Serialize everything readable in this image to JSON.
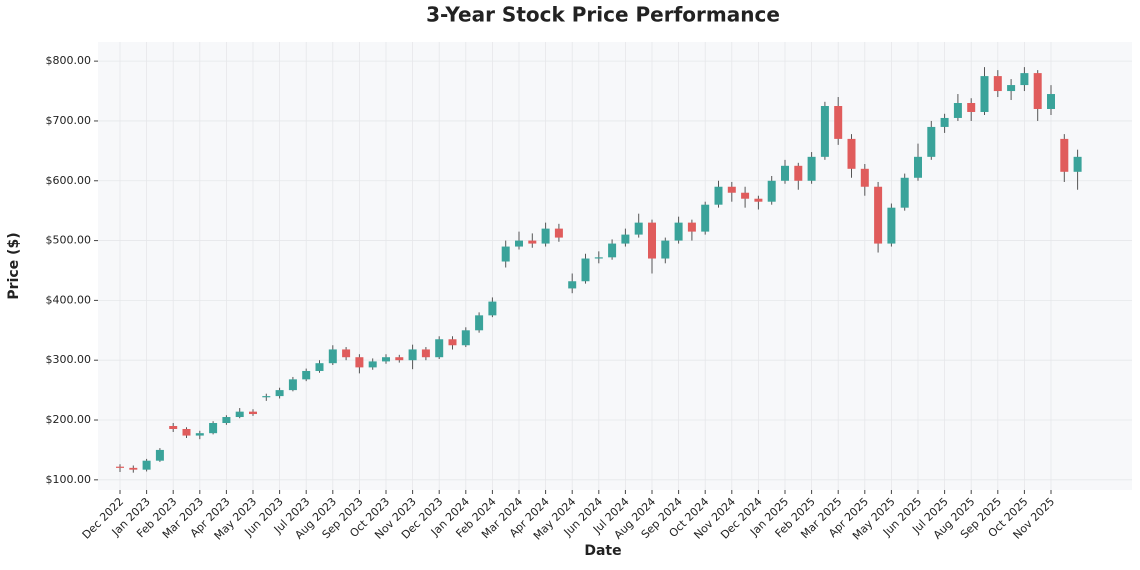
{
  "chart_data": {
    "type": "candlestick",
    "title": "3-Year Stock Price Performance",
    "x_label": "Date",
    "y_label": "Price ($)",
    "categories": [
      "Dec 2022",
      null,
      "Jan 2023",
      null,
      "Feb 2023",
      null,
      "Mar 2023",
      null,
      "Apr 2023",
      null,
      "May 2023",
      null,
      "Jun 2023",
      null,
      "Jul 2023",
      null,
      "Aug 2023",
      null,
      "Sep 2023",
      null,
      "Oct 2023",
      null,
      "Nov 2023",
      null,
      "Dec 2023",
      null,
      "Jan 2024",
      null,
      "Feb 2024",
      null,
      "Mar 2024",
      null,
      "Apr 2024",
      null,
      "May 2024",
      null,
      "Jun 2024",
      null,
      "Jul 2024",
      null,
      "Aug 2024",
      null,
      "Sep 2024",
      null,
      "Oct 2024",
      null,
      "Nov 2024",
      null,
      "Dec 2024",
      null,
      "Jan 2025",
      null,
      "Feb 2025",
      null,
      "Mar 2025",
      null,
      "Apr 2025",
      null,
      "May 2025",
      null,
      "Jun 2025",
      null,
      "Jul 2025",
      null,
      "Aug 2025",
      null,
      "Sep 2025",
      null,
      "Oct 2025",
      null,
      "Nov 2025",
      null,
      null
    ],
    "open": [
      122,
      120,
      117,
      132,
      190,
      185,
      174,
      178,
      195,
      205,
      214,
      238,
      240,
      250,
      268,
      282,
      295,
      318,
      305,
      288,
      298,
      305,
      300,
      318,
      305,
      335,
      325,
      350,
      375,
      465,
      490,
      500,
      495,
      520,
      420,
      432,
      470,
      472,
      495,
      510,
      530,
      470,
      500,
      530,
      515,
      560,
      590,
      580,
      570,
      565,
      600,
      625,
      600,
      640,
      725,
      670,
      620,
      590,
      495,
      555,
      605,
      640,
      690,
      705,
      730,
      715,
      775,
      750,
      760,
      780,
      720,
      670,
      615
    ],
    "high": [
      126,
      124,
      135,
      153,
      195,
      188,
      182,
      198,
      208,
      220,
      218,
      244,
      254,
      272,
      286,
      300,
      325,
      322,
      310,
      303,
      310,
      309,
      326,
      322,
      340,
      340,
      355,
      380,
      405,
      500,
      515,
      512,
      530,
      528,
      445,
      478,
      482,
      502,
      520,
      545,
      535,
      505,
      540,
      535,
      565,
      600,
      598,
      590,
      575,
      608,
      635,
      630,
      648,
      732,
      740,
      678,
      628,
      598,
      562,
      612,
      662,
      700,
      712,
      745,
      738,
      790,
      785,
      770,
      790,
      785,
      760,
      678,
      652
    ],
    "low": [
      113,
      112,
      114,
      130,
      180,
      170,
      168,
      176,
      192,
      203,
      207,
      232,
      236,
      248,
      265,
      279,
      292,
      300,
      278,
      284,
      294,
      296,
      285,
      300,
      302,
      318,
      322,
      346,
      372,
      455,
      485,
      488,
      490,
      498,
      412,
      428,
      462,
      468,
      490,
      505,
      445,
      462,
      495,
      500,
      510,
      555,
      565,
      555,
      552,
      560,
      595,
      585,
      595,
      635,
      660,
      605,
      575,
      480,
      490,
      550,
      600,
      635,
      680,
      700,
      700,
      710,
      740,
      735,
      750,
      700,
      710,
      598,
      585
    ],
    "close": [
      120,
      117,
      132,
      150,
      185,
      174,
      178,
      195,
      205,
      214,
      210,
      240,
      250,
      268,
      282,
      295,
      318,
      305,
      288,
      298,
      305,
      300,
      318,
      305,
      335,
      325,
      350,
      375,
      398,
      490,
      500,
      495,
      520,
      505,
      432,
      470,
      472,
      495,
      510,
      530,
      470,
      500,
      530,
      515,
      560,
      590,
      580,
      570,
      565,
      600,
      625,
      600,
      640,
      725,
      670,
      620,
      590,
      495,
      555,
      605,
      640,
      690,
      705,
      730,
      715,
      775,
      750,
      760,
      780,
      720,
      745,
      615,
      640
    ],
    "up_color": "#3aa39a",
    "down_color": "#e05c5c",
    "ylim": [
      83,
      832
    ],
    "yticks": [
      {
        "value": 100,
        "label": "$100.00"
      },
      {
        "value": 200,
        "label": "$200.00"
      },
      {
        "value": 300,
        "label": "$300.00"
      },
      {
        "value": 400,
        "label": "$400.00"
      },
      {
        "value": 500,
        "label": "$500.00"
      },
      {
        "value": 600,
        "label": "$600.00"
      },
      {
        "value": 700,
        "label": "$700.00"
      },
      {
        "value": 800,
        "label": "$800.00"
      }
    ],
    "grid": true
  }
}
